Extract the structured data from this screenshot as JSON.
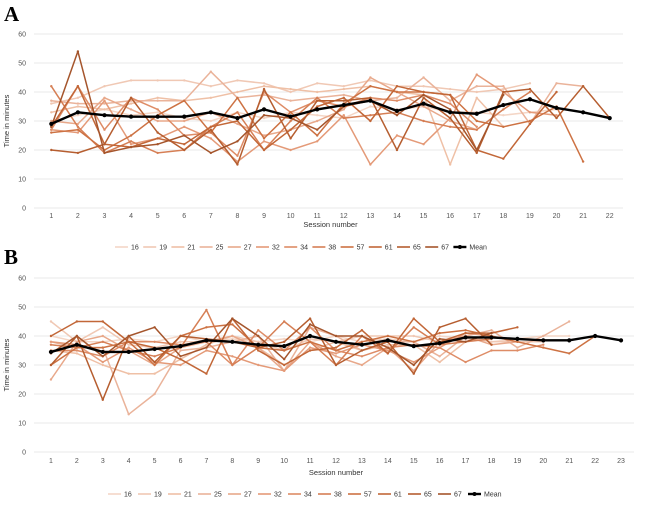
{
  "chart_data": [
    {
      "type": "line",
      "panel_label": "A",
      "xlabel": "Session number",
      "ylabel": "Time in minutes",
      "ylim": [
        0,
        60
      ],
      "yticks": [
        0,
        10,
        20,
        30,
        40,
        50,
        60
      ],
      "x": [
        1,
        2,
        3,
        4,
        5,
        6,
        7,
        8,
        9,
        10,
        11,
        12,
        13,
        14,
        15,
        16,
        17,
        18,
        19,
        20,
        21,
        22
      ],
      "grid": true,
      "legend_position": "bottom",
      "series": [
        {
          "name": "16",
          "color": "#f4d6c6",
          "values": [
            30,
            32,
            34,
            32,
            33,
            31,
            30,
            33,
            31,
            33,
            32,
            31,
            35,
            34,
            35,
            33,
            33,
            32,
            33,
            34,
            null,
            null
          ]
        },
        {
          "name": "19",
          "color": "#f0c8b4",
          "values": [
            36,
            38,
            42,
            44,
            44,
            44,
            42,
            44,
            43,
            40,
            43,
            42,
            44,
            42,
            42,
            41,
            40,
            41,
            43,
            null,
            null,
            null
          ]
        },
        {
          "name": "21",
          "color": "#efc0a6",
          "values": [
            33,
            35,
            34,
            36,
            38,
            37,
            38,
            40,
            42,
            41,
            40,
            41,
            42,
            40,
            39,
            15,
            38,
            28,
            null,
            null,
            null,
            null
          ]
        },
        {
          "name": "25",
          "color": "#eab39a",
          "values": [
            37,
            36,
            36,
            37,
            37,
            37,
            47,
            38,
            39,
            37,
            38,
            39,
            37,
            38,
            45,
            37,
            42,
            42,
            29,
            43,
            42,
            null
          ]
        },
        {
          "name": "27",
          "color": "#e8a88a",
          "values": [
            30,
            29,
            38,
            34,
            30,
            30,
            33,
            29,
            25,
            27,
            30,
            34,
            45,
            40,
            35,
            30,
            27,
            null,
            null,
            null,
            null,
            null
          ]
        },
        {
          "name": "32",
          "color": "#e49a78",
          "values": [
            27,
            26,
            37,
            22,
            24,
            28,
            24,
            16,
            23,
            20,
            23,
            32,
            15,
            25,
            22,
            31,
            46,
            40,
            33,
            32,
            null,
            null
          ]
        },
        {
          "name": "34",
          "color": "#de8c66",
          "values": [
            27,
            42,
            27,
            38,
            34,
            25,
            26,
            18,
            40,
            33,
            37,
            35,
            38,
            37,
            39,
            36,
            28,
            null,
            null,
            null,
            null,
            null
          ]
        },
        {
          "name": "38",
          "color": "#d67f55",
          "values": [
            42,
            28,
            19,
            23,
            19,
            20,
            28,
            33,
            20,
            30,
            38,
            31,
            32,
            33,
            30,
            28,
            27,
            34,
            40,
            null,
            null,
            null
          ]
        },
        {
          "name": "57",
          "color": "#cd7243",
          "values": [
            26,
            27,
            20,
            25,
            32,
            37,
            26,
            38,
            24,
            33,
            25,
            36,
            42,
            40,
            40,
            39,
            30,
            28,
            30,
            35,
            16,
            null
          ]
        },
        {
          "name": "61",
          "color": "#c26738",
          "values": [
            28,
            42,
            22,
            21,
            24,
            22,
            28,
            30,
            20,
            27,
            35,
            38,
            30,
            42,
            40,
            39,
            20,
            17,
            29,
            40,
            null,
            null
          ]
        },
        {
          "name": "65",
          "color": "#b65e30",
          "values": [
            20,
            19,
            22,
            38,
            26,
            20,
            27,
            15,
            41,
            24,
            37,
            37,
            38,
            20,
            38,
            31,
            19,
            40,
            41,
            31,
            42,
            31
          ]
        },
        {
          "name": "67",
          "color": "#a5552c",
          "values": [
            28,
            54,
            19,
            21,
            22,
            25,
            19,
            23,
            32,
            31,
            27,
            35,
            37,
            32,
            39,
            34,
            20,
            39,
            null,
            null,
            null,
            null
          ]
        },
        {
          "name": "Mean",
          "color": "#000000",
          "values": [
            29,
            33,
            32,
            31.5,
            31.5,
            31.5,
            33,
            31,
            34,
            31.5,
            34,
            35.5,
            37,
            33.5,
            36,
            33,
            32.5,
            35.5,
            37.5,
            34.5,
            33,
            31
          ]
        }
      ]
    },
    {
      "type": "line",
      "panel_label": "B",
      "xlabel": "Session number",
      "ylabel": "Time in minutes",
      "ylim": [
        0,
        60
      ],
      "yticks": [
        0,
        10,
        20,
        30,
        40,
        50,
        60
      ],
      "x": [
        1,
        2,
        3,
        4,
        5,
        6,
        7,
        8,
        9,
        10,
        11,
        12,
        13,
        14,
        15,
        16,
        17,
        18,
        19,
        20,
        21,
        22,
        23
      ],
      "grid": true,
      "legend_position": "bottom",
      "series": [
        {
          "name": "16",
          "color": "#f4d6c6",
          "values": [
            40,
            38,
            38,
            39,
            38,
            40,
            38,
            39,
            38,
            39,
            38,
            40,
            38,
            39,
            38,
            40,
            39,
            38,
            39,
            40,
            40,
            null,
            null
          ]
        },
        {
          "name": "19",
          "color": "#f0c8b4",
          "values": [
            45,
            38,
            43,
            37,
            36,
            38,
            38,
            40,
            38,
            35,
            39,
            38,
            40,
            40,
            40,
            38,
            40,
            38,
            38,
            38,
            null,
            null,
            null
          ]
        },
        {
          "name": "21",
          "color": "#efc0a6",
          "values": [
            35,
            34,
            30,
            27,
            27,
            32,
            37,
            40,
            36,
            30,
            35,
            38,
            35,
            37,
            37,
            31,
            38,
            40,
            null,
            null,
            null,
            null,
            null
          ]
        },
        {
          "name": "25",
          "color": "#eab39a",
          "values": [
            38,
            36,
            36,
            13,
            20,
            35,
            36,
            38,
            40,
            28,
            43,
            40,
            35,
            38,
            38,
            33,
            40,
            42,
            36,
            40,
            45,
            null,
            null
          ]
        },
        {
          "name": "27",
          "color": "#e8a88a",
          "values": [
            25,
            38,
            40,
            35,
            30,
            36,
            38,
            40,
            36,
            28,
            38,
            33,
            30,
            36,
            28,
            38,
            40,
            37,
            38,
            null,
            null,
            null,
            null
          ]
        },
        {
          "name": "32",
          "color": "#e49a78",
          "values": [
            38,
            37,
            31,
            36,
            31,
            30,
            35,
            33,
            30,
            28,
            36,
            34,
            37,
            35,
            31,
            36,
            41,
            40,
            null,
            null,
            null,
            null,
            null
          ]
        },
        {
          "name": "34",
          "color": "#de8c66",
          "values": [
            35,
            35,
            33,
            38,
            38,
            37,
            38,
            30,
            42,
            35,
            43,
            35,
            33,
            36,
            37,
            36,
            31,
            35,
            35,
            37,
            null,
            null,
            null
          ]
        },
        {
          "name": "38",
          "color": "#d67f55",
          "values": [
            37,
            36,
            38,
            35,
            33,
            36,
            49,
            30,
            36,
            45,
            38,
            30,
            40,
            34,
            43,
            37,
            38,
            39,
            null,
            null,
            null,
            null,
            null
          ]
        },
        {
          "name": "57",
          "color": "#cd7243",
          "values": [
            30,
            36,
            36,
            38,
            30,
            40,
            43,
            44,
            36,
            35,
            38,
            35,
            38,
            40,
            38,
            41,
            42,
            40,
            38,
            36,
            34,
            40,
            null
          ]
        },
        {
          "name": "61",
          "color": "#c26738",
          "values": [
            40,
            45,
            45,
            38,
            36,
            32,
            27,
            46,
            35,
            30,
            35,
            36,
            42,
            34,
            46,
            38,
            41,
            41,
            43,
            null,
            null,
            null,
            null
          ]
        },
        {
          "name": "65",
          "color": "#b65e30",
          "values": [
            30,
            40,
            18,
            40,
            31,
            40,
            39,
            38,
            36,
            38,
            46,
            30,
            35,
            38,
            27,
            43,
            46,
            37,
            null,
            null,
            null,
            null,
            null
          ]
        },
        {
          "name": "67",
          "color": "#a5552c",
          "values": [
            34,
            40,
            33,
            40,
            43,
            33,
            36,
            46,
            40,
            32,
            44,
            40,
            40,
            36,
            30,
            39,
            38,
            41,
            null,
            null,
            null,
            null,
            null
          ]
        },
        {
          "name": "Mean",
          "color": "#000000",
          "values": [
            34.5,
            37,
            34.5,
            34.5,
            35.5,
            36.5,
            38.5,
            38,
            37,
            36.5,
            40,
            38,
            37,
            38.5,
            36.5,
            37.5,
            39.5,
            39.5,
            39,
            38.5,
            38.5,
            40,
            38.5
          ]
        }
      ]
    }
  ]
}
